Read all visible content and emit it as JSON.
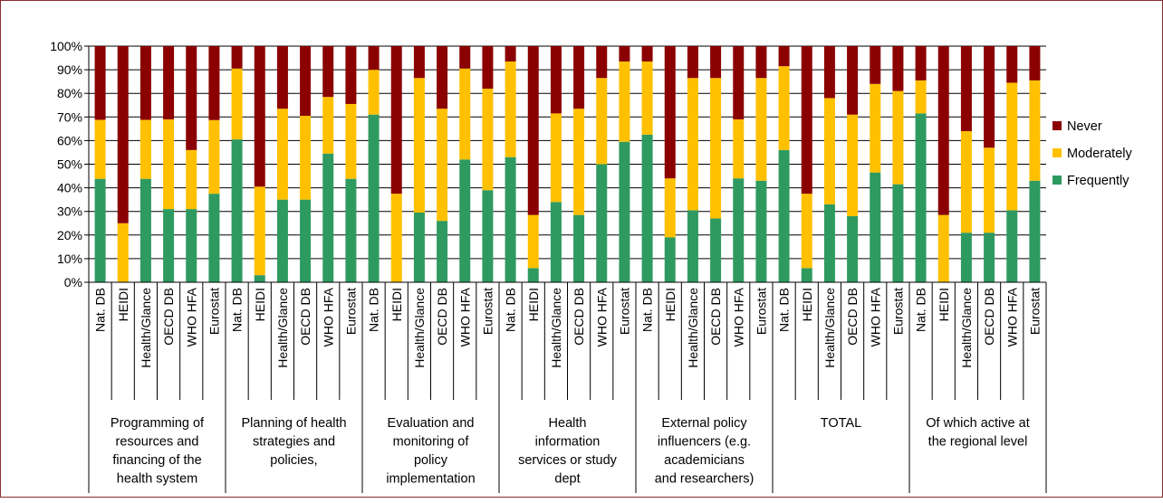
{
  "chart_data": {
    "type": "bar",
    "stacked": true,
    "percent": true,
    "y_ticks": [
      "0%",
      "10%",
      "20%",
      "30%",
      "40%",
      "50%",
      "60%",
      "70%",
      "80%",
      "90%",
      "100%"
    ],
    "ylim": [
      0,
      100
    ],
    "grid": "horizontal",
    "legend_placement": "right",
    "series": [
      {
        "name": "Never",
        "color": "#8B0000"
      },
      {
        "name": "Moderately",
        "color": "#FFC000"
      },
      {
        "name": "Frequently",
        "color": "#2E9A60"
      }
    ],
    "groups": [
      {
        "label": "Programming of resources and financing of the health system",
        "label_lines": [
          "Programming of",
          "resources and",
          "financing of the",
          "health system"
        ],
        "bars": [
          {
            "category": "Nat. DB",
            "frequently": 43.8,
            "moderately": 25.0,
            "never": 31.2
          },
          {
            "category": "HEIDI",
            "frequently": 0.0,
            "moderately": 25.0,
            "never": 75.0
          },
          {
            "category": "Health/Glance",
            "frequently": 43.8,
            "moderately": 25.0,
            "never": 31.2
          },
          {
            "category": "OECD DB",
            "frequently": 31.0,
            "moderately": 38.0,
            "never": 31.0
          },
          {
            "category": "WHO HFA",
            "frequently": 31.0,
            "moderately": 25.0,
            "never": 44.0
          },
          {
            "category": "Eurostat",
            "frequently": 37.5,
            "moderately": 31.2,
            "never": 31.3
          }
        ]
      },
      {
        "label": "Planning of health strategies and policies,",
        "label_lines": [
          "Planning of health",
          "strategies and",
          "policies,"
        ],
        "bars": [
          {
            "category": "Nat. DB",
            "frequently": 60.5,
            "moderately": 30.0,
            "never": 9.5
          },
          {
            "category": "HEIDI",
            "frequently": 3.0,
            "moderately": 37.5,
            "never": 59.5
          },
          {
            "category": "Health/Glance",
            "frequently": 35.0,
            "moderately": 38.5,
            "never": 26.5
          },
          {
            "category": "OECD DB",
            "frequently": 35.0,
            "moderately": 35.5,
            "never": 29.5
          },
          {
            "category": "WHO HFA",
            "frequently": 54.5,
            "moderately": 24.0,
            "never": 21.5
          },
          {
            "category": "Eurostat",
            "frequently": 43.8,
            "moderately": 31.7,
            "never": 24.5
          }
        ]
      },
      {
        "label": "Evaluation and monitoring of policy implementation",
        "label_lines": [
          "Evaluation and",
          "monitoring of",
          "policy",
          "implementation"
        ],
        "bars": [
          {
            "category": "Nat. DB",
            "frequently": 71.0,
            "moderately": 19.0,
            "never": 10.0
          },
          {
            "category": "HEIDI",
            "frequently": 0.0,
            "moderately": 37.5,
            "never": 62.5
          },
          {
            "category": "Health/Glance",
            "frequently": 29.5,
            "moderately": 57.0,
            "never": 13.5
          },
          {
            "category": "OECD DB",
            "frequently": 26.0,
            "moderately": 47.5,
            "never": 26.5
          },
          {
            "category": "WHO HFA",
            "frequently": 52.0,
            "moderately": 38.5,
            "never": 9.5
          },
          {
            "category": "Eurostat",
            "frequently": 39.0,
            "moderately": 43.0,
            "never": 18.0
          }
        ]
      },
      {
        "label": "Health information services or study dept",
        "label_lines": [
          "Health",
          "information",
          "services or study",
          "dept"
        ],
        "bars": [
          {
            "category": "Nat. DB",
            "frequently": 53.0,
            "moderately": 40.5,
            "never": 6.5
          },
          {
            "category": "HEIDI",
            "frequently": 6.0,
            "moderately": 22.5,
            "never": 71.5
          },
          {
            "category": "Health/Glance",
            "frequently": 34.0,
            "moderately": 37.5,
            "never": 28.5
          },
          {
            "category": "OECD DB",
            "frequently": 28.5,
            "moderately": 45.0,
            "never": 26.5
          },
          {
            "category": "WHO HFA",
            "frequently": 50.0,
            "moderately": 36.5,
            "never": 13.5
          },
          {
            "category": "Eurostat",
            "frequently": 59.5,
            "moderately": 34.0,
            "never": 6.5
          }
        ]
      },
      {
        "label": "External policy influencers (e.g. academicians and researchers)",
        "label_lines": [
          "External policy",
          "influencers (e.g.",
          "academicians",
          "and researchers)"
        ],
        "bars": [
          {
            "category": "Nat. DB",
            "frequently": 62.5,
            "moderately": 31.0,
            "never": 6.5
          },
          {
            "category": "HEIDI",
            "frequently": 19.0,
            "moderately": 25.0,
            "never": 56.0
          },
          {
            "category": "Health/Glance",
            "frequently": 30.5,
            "moderately": 56.0,
            "never": 13.5
          },
          {
            "category": "OECD DB",
            "frequently": 27.0,
            "moderately": 59.5,
            "never": 13.5
          },
          {
            "category": "WHO HFA",
            "frequently": 44.0,
            "moderately": 25.0,
            "never": 31.0
          },
          {
            "category": "Eurostat",
            "frequently": 43.0,
            "moderately": 43.5,
            "never": 13.5
          }
        ]
      },
      {
        "label": "TOTAL",
        "label_lines": [
          "TOTAL"
        ],
        "bars": [
          {
            "category": "Nat. DB",
            "frequently": 56.0,
            "moderately": 35.5,
            "never": 8.5
          },
          {
            "category": "HEIDI",
            "frequently": 6.0,
            "moderately": 31.5,
            "never": 62.5
          },
          {
            "category": "Health/Glance",
            "frequently": 33.0,
            "moderately": 45.0,
            "never": 22.0
          },
          {
            "category": "OECD DB",
            "frequently": 28.0,
            "moderately": 43.0,
            "never": 29.0
          },
          {
            "category": "WHO HFA",
            "frequently": 46.5,
            "moderately": 37.5,
            "never": 16.0
          },
          {
            "category": "Eurostat",
            "frequently": 41.5,
            "moderately": 39.5,
            "never": 19.0
          }
        ]
      },
      {
        "label": "Of which active at the regional level",
        "label_lines": [
          "Of which active at",
          "the regional level"
        ],
        "bars": [
          {
            "category": "Nat. DB",
            "frequently": 71.5,
            "moderately": 14.0,
            "never": 14.5
          },
          {
            "category": "HEIDI",
            "frequently": 0.0,
            "moderately": 28.5,
            "never": 71.5
          },
          {
            "category": "Health/Glance",
            "frequently": 21.0,
            "moderately": 43.0,
            "never": 36.0
          },
          {
            "category": "OECD DB",
            "frequently": 21.0,
            "moderately": 36.0,
            "never": 43.0
          },
          {
            "category": "WHO HFA",
            "frequently": 30.5,
            "moderately": 54.0,
            "never": 15.5
          },
          {
            "category": "Eurostat",
            "frequently": 43.0,
            "moderately": 42.5,
            "never": 14.5
          }
        ]
      }
    ]
  }
}
